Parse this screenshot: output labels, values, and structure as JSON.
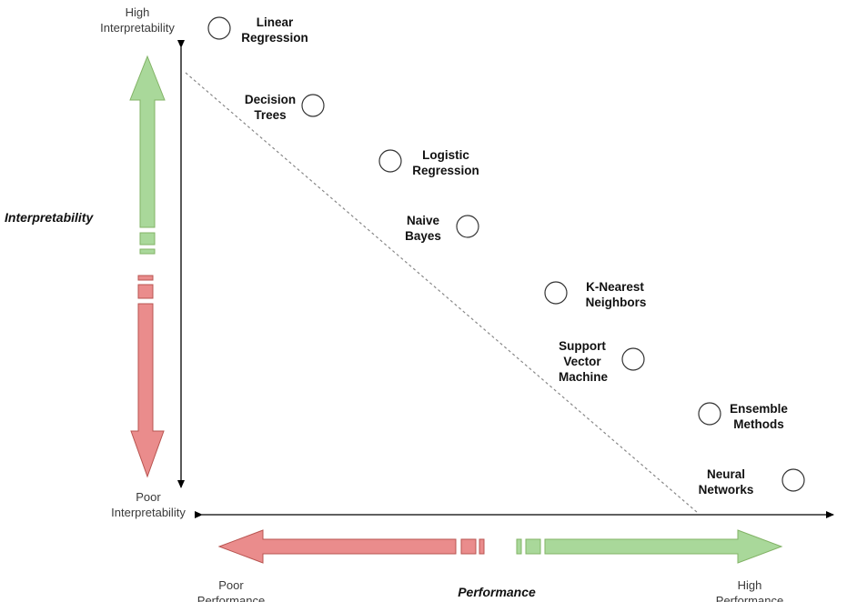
{
  "y_axis": {
    "title": "Interpretability",
    "high_line1": "High",
    "high_line2": "Interpretability",
    "low_line1": "Poor",
    "low_line2": "Interpretability"
  },
  "x_axis": {
    "title": "Performance",
    "low_line1": "Poor",
    "low_line2": "Performance",
    "high_line1": "High",
    "high_line2": "Performance"
  },
  "models": [
    {
      "name": "linear-regression",
      "line1": "Linear",
      "line2": "Regression",
      "line3": ""
    },
    {
      "name": "decision-trees",
      "line1": "Decision",
      "line2": "Trees",
      "line3": ""
    },
    {
      "name": "logistic-regression",
      "line1": "Logistic",
      "line2": "Regression",
      "line3": ""
    },
    {
      "name": "naive-bayes",
      "line1": "Naive",
      "line2": "Bayes",
      "line3": ""
    },
    {
      "name": "k-nearest-neighbors",
      "line1": "K-Nearest",
      "line2": "Neighbors",
      "line3": ""
    },
    {
      "name": "support-vector-machine",
      "line1": "Support",
      "line2": "Vector",
      "line3": "Machine"
    },
    {
      "name": "ensemble-methods",
      "line1": "Ensemble",
      "line2": "Methods",
      "line3": ""
    },
    {
      "name": "neural-networks",
      "line1": "Neural",
      "line2": "Networks",
      "line3": ""
    }
  ],
  "colors": {
    "green_fill": "#a9d89a",
    "green_stroke": "#82b366",
    "red_fill": "#ea8c8c",
    "red_stroke": "#b85450",
    "axis": "#000000",
    "tradeoff_line": "#888888"
  }
}
